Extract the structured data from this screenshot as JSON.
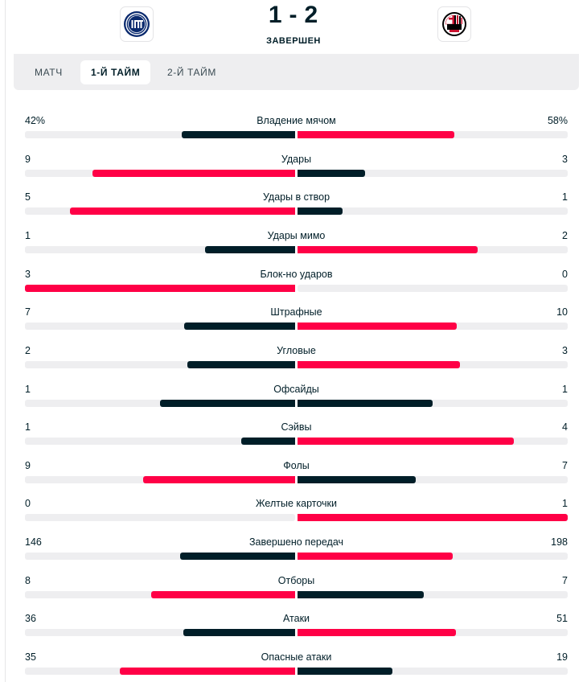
{
  "match": {
    "score_home": "1",
    "score_sep": "-",
    "score_away": "2",
    "status": "ЗАВЕРШЕН",
    "home_team_icon": "inter-logo-icon",
    "away_team_icon": "milan-logo-icon"
  },
  "tabs": [
    {
      "label": "МАТЧ",
      "active": false
    },
    {
      "label": "1-Й ТАЙМ",
      "active": true
    },
    {
      "label": "2-Й ТАЙМ",
      "active": false
    }
  ],
  "colors": {
    "leader": "#ff0046",
    "trailer": "#001e28",
    "track": "#eeeef0"
  },
  "stats": [
    {
      "label": "Владение мячом",
      "home": "42%",
      "away": "58%",
      "home_value": 42,
      "away_value": 58
    },
    {
      "label": "Удары",
      "home": "9",
      "away": "3",
      "home_value": 9,
      "away_value": 3
    },
    {
      "label": "Удары в створ",
      "home": "5",
      "away": "1",
      "home_value": 5,
      "away_value": 1
    },
    {
      "label": "Удары мимо",
      "home": "1",
      "away": "2",
      "home_value": 1,
      "away_value": 2
    },
    {
      "label": "Блок-но ударов",
      "home": "3",
      "away": "0",
      "home_value": 3,
      "away_value": 0
    },
    {
      "label": "Штрафные",
      "home": "7",
      "away": "10",
      "home_value": 7,
      "away_value": 10
    },
    {
      "label": "Угловые",
      "home": "2",
      "away": "3",
      "home_value": 2,
      "away_value": 3
    },
    {
      "label": "Офсайды",
      "home": "1",
      "away": "1",
      "home_value": 1,
      "away_value": 1
    },
    {
      "label": "Сэйвы",
      "home": "1",
      "away": "4",
      "home_value": 1,
      "away_value": 4
    },
    {
      "label": "Фолы",
      "home": "9",
      "away": "7",
      "home_value": 9,
      "away_value": 7
    },
    {
      "label": "Желтые карточки",
      "home": "0",
      "away": "1",
      "home_value": 0,
      "away_value": 1
    },
    {
      "label": "Завершено передач",
      "home": "146",
      "away": "198",
      "home_value": 146,
      "away_value": 198
    },
    {
      "label": "Отборы",
      "home": "8",
      "away": "7",
      "home_value": 8,
      "away_value": 7
    },
    {
      "label": "Атаки",
      "home": "36",
      "away": "51",
      "home_value": 36,
      "away_value": 51
    },
    {
      "label": "Опасные атаки",
      "home": "35",
      "away": "19",
      "home_value": 35,
      "away_value": 19
    }
  ]
}
